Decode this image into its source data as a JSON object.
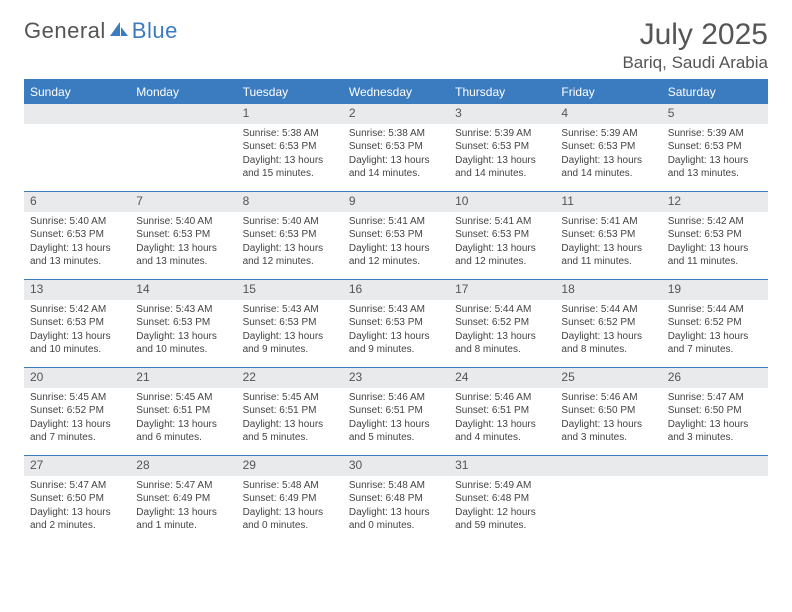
{
  "brand": {
    "part1": "General",
    "part2": "Blue"
  },
  "title": {
    "month": "July 2025",
    "location": "Bariq, Saudi Arabia"
  },
  "colors": {
    "accent": "#3b7bbf",
    "header_bg": "#3b7bbf",
    "header_text": "#ffffff",
    "daynum_bg": "#e9eaec",
    "text": "#444444",
    "page_bg": "#ffffff"
  },
  "weekdays": [
    "Sunday",
    "Monday",
    "Tuesday",
    "Wednesday",
    "Thursday",
    "Friday",
    "Saturday"
  ],
  "weeks": [
    [
      null,
      null,
      {
        "n": "1",
        "sr": "5:38 AM",
        "ss": "6:53 PM",
        "dl": "13 hours and 15 minutes."
      },
      {
        "n": "2",
        "sr": "5:38 AM",
        "ss": "6:53 PM",
        "dl": "13 hours and 14 minutes."
      },
      {
        "n": "3",
        "sr": "5:39 AM",
        "ss": "6:53 PM",
        "dl": "13 hours and 14 minutes."
      },
      {
        "n": "4",
        "sr": "5:39 AM",
        "ss": "6:53 PM",
        "dl": "13 hours and 14 minutes."
      },
      {
        "n": "5",
        "sr": "5:39 AM",
        "ss": "6:53 PM",
        "dl": "13 hours and 13 minutes."
      }
    ],
    [
      {
        "n": "6",
        "sr": "5:40 AM",
        "ss": "6:53 PM",
        "dl": "13 hours and 13 minutes."
      },
      {
        "n": "7",
        "sr": "5:40 AM",
        "ss": "6:53 PM",
        "dl": "13 hours and 13 minutes."
      },
      {
        "n": "8",
        "sr": "5:40 AM",
        "ss": "6:53 PM",
        "dl": "13 hours and 12 minutes."
      },
      {
        "n": "9",
        "sr": "5:41 AM",
        "ss": "6:53 PM",
        "dl": "13 hours and 12 minutes."
      },
      {
        "n": "10",
        "sr": "5:41 AM",
        "ss": "6:53 PM",
        "dl": "13 hours and 12 minutes."
      },
      {
        "n": "11",
        "sr": "5:41 AM",
        "ss": "6:53 PM",
        "dl": "13 hours and 11 minutes."
      },
      {
        "n": "12",
        "sr": "5:42 AM",
        "ss": "6:53 PM",
        "dl": "13 hours and 11 minutes."
      }
    ],
    [
      {
        "n": "13",
        "sr": "5:42 AM",
        "ss": "6:53 PM",
        "dl": "13 hours and 10 minutes."
      },
      {
        "n": "14",
        "sr": "5:43 AM",
        "ss": "6:53 PM",
        "dl": "13 hours and 10 minutes."
      },
      {
        "n": "15",
        "sr": "5:43 AM",
        "ss": "6:53 PM",
        "dl": "13 hours and 9 minutes."
      },
      {
        "n": "16",
        "sr": "5:43 AM",
        "ss": "6:53 PM",
        "dl": "13 hours and 9 minutes."
      },
      {
        "n": "17",
        "sr": "5:44 AM",
        "ss": "6:52 PM",
        "dl": "13 hours and 8 minutes."
      },
      {
        "n": "18",
        "sr": "5:44 AM",
        "ss": "6:52 PM",
        "dl": "13 hours and 8 minutes."
      },
      {
        "n": "19",
        "sr": "5:44 AM",
        "ss": "6:52 PM",
        "dl": "13 hours and 7 minutes."
      }
    ],
    [
      {
        "n": "20",
        "sr": "5:45 AM",
        "ss": "6:52 PM",
        "dl": "13 hours and 7 minutes."
      },
      {
        "n": "21",
        "sr": "5:45 AM",
        "ss": "6:51 PM",
        "dl": "13 hours and 6 minutes."
      },
      {
        "n": "22",
        "sr": "5:45 AM",
        "ss": "6:51 PM",
        "dl": "13 hours and 5 minutes."
      },
      {
        "n": "23",
        "sr": "5:46 AM",
        "ss": "6:51 PM",
        "dl": "13 hours and 5 minutes."
      },
      {
        "n": "24",
        "sr": "5:46 AM",
        "ss": "6:51 PM",
        "dl": "13 hours and 4 minutes."
      },
      {
        "n": "25",
        "sr": "5:46 AM",
        "ss": "6:50 PM",
        "dl": "13 hours and 3 minutes."
      },
      {
        "n": "26",
        "sr": "5:47 AM",
        "ss": "6:50 PM",
        "dl": "13 hours and 3 minutes."
      }
    ],
    [
      {
        "n": "27",
        "sr": "5:47 AM",
        "ss": "6:50 PM",
        "dl": "13 hours and 2 minutes."
      },
      {
        "n": "28",
        "sr": "5:47 AM",
        "ss": "6:49 PM",
        "dl": "13 hours and 1 minute."
      },
      {
        "n": "29",
        "sr": "5:48 AM",
        "ss": "6:49 PM",
        "dl": "13 hours and 0 minutes."
      },
      {
        "n": "30",
        "sr": "5:48 AM",
        "ss": "6:48 PM",
        "dl": "13 hours and 0 minutes."
      },
      {
        "n": "31",
        "sr": "5:49 AM",
        "ss": "6:48 PM",
        "dl": "12 hours and 59 minutes."
      },
      null,
      null
    ]
  ],
  "labels": {
    "sunrise": "Sunrise:",
    "sunset": "Sunset:",
    "daylight": "Daylight:"
  }
}
